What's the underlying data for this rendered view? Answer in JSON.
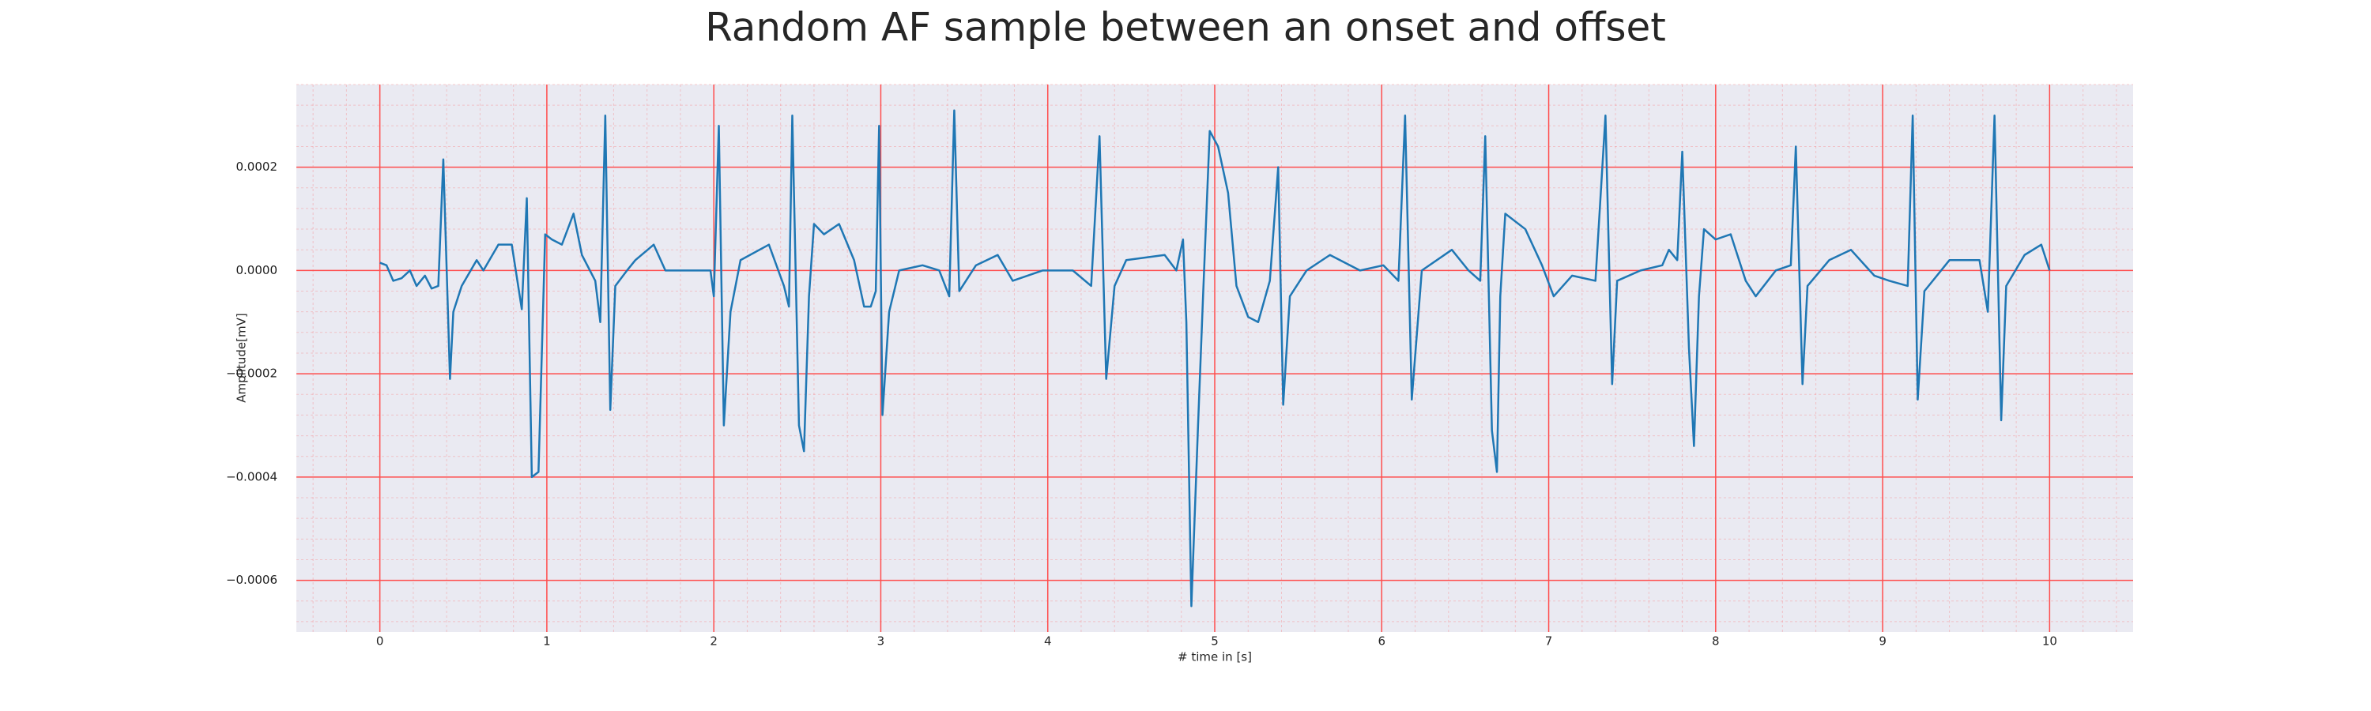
{
  "chart_data": {
    "type": "line",
    "title": "Random AF sample between an onset and offset",
    "xlabel": "# time in [s]",
    "ylabel": "Amplitude[mV]",
    "x": [
      0,
      0.04,
      0.08,
      0.13,
      0.18,
      0.22,
      0.27,
      0.31,
      0.35,
      0.38,
      0.42,
      0.44,
      0.49,
      0.58,
      0.62,
      0.71,
      0.79,
      0.85,
      0.88,
      0.91,
      0.95,
      0.99,
      1.03,
      1.09,
      1.16,
      1.21,
      1.29,
      1.32,
      1.35,
      1.38,
      1.41,
      1.48,
      1.53,
      1.64,
      1.71,
      1.89,
      1.98,
      2.0,
      2.03,
      2.06,
      2.1,
      2.16,
      2.33,
      2.42,
      2.45,
      2.47,
      2.51,
      2.54,
      2.57,
      2.6,
      2.66,
      2.75,
      2.84,
      2.9,
      2.94,
      2.97,
      2.99,
      3.01,
      3.05,
      3.11,
      3.25,
      3.35,
      3.41,
      3.44,
      3.47,
      3.57,
      3.7,
      3.79,
      3.97,
      4.15,
      4.26,
      4.31,
      4.35,
      4.4,
      4.47,
      4.7,
      4.77,
      4.81,
      4.83,
      4.86,
      4.9,
      4.93,
      4.97,
      5.02,
      5.08,
      5.13,
      5.2,
      5.26,
      5.33,
      5.38,
      5.41,
      5.45,
      5.55,
      5.69,
      5.87,
      6.01,
      6.1,
      6.14,
      6.18,
      6.24,
      6.42,
      6.52,
      6.59,
      6.62,
      6.66,
      6.69,
      6.71,
      6.74,
      6.86,
      6.96,
      7.03,
      7.14,
      7.28,
      7.34,
      7.38,
      7.41,
      7.55,
      7.68,
      7.72,
      7.77,
      7.8,
      7.84,
      7.87,
      7.9,
      7.93,
      8.0,
      8.09,
      8.18,
      8.24,
      8.36,
      8.45,
      8.48,
      8.52,
      8.55,
      8.68,
      8.81,
      8.95,
      9.04,
      9.15,
      9.18,
      9.21,
      9.25,
      9.4,
      9.58,
      9.63,
      9.67,
      9.71,
      9.74,
      9.85,
      9.95,
      10.0
    ],
    "series": [
      {
        "color": "#1f77b4",
        "values": [
          1.5e-05,
          1e-05,
          -2e-05,
          -1.5e-05,
          0,
          -3e-05,
          -1e-05,
          -3.5e-05,
          -3e-05,
          0.000215,
          -0.00021,
          -8e-05,
          -3e-05,
          2e-05,
          0,
          5e-05,
          5e-05,
          -7.5e-05,
          0.00014,
          -0.0004,
          -0.00039,
          7e-05,
          6e-05,
          5e-05,
          0.00011,
          3e-05,
          -2e-05,
          -0.0001,
          0.0003,
          -0.00027,
          -3e-05,
          0,
          2e-05,
          5e-05,
          0,
          0,
          0,
          -5e-05,
          0.00028,
          -0.0003,
          -8e-05,
          2e-05,
          5e-05,
          -3e-05,
          -7e-05,
          0.0003,
          -0.0003,
          -0.00035,
          -5e-05,
          9e-05,
          7e-05,
          9e-05,
          2e-05,
          -7e-05,
          -7e-05,
          -4e-05,
          0.00028,
          -0.00028,
          -8e-05,
          0,
          1e-05,
          0,
          -5e-05,
          0.00031,
          -4e-05,
          1e-05,
          3e-05,
          -2e-05,
          0,
          0,
          -3e-05,
          0.00026,
          -0.00021,
          -3e-05,
          2e-05,
          3e-05,
          0,
          6e-05,
          -0.0001,
          -0.00065,
          -0.0003,
          -5e-05,
          0.00027,
          0.00024,
          0.00015,
          -3e-05,
          -9e-05,
          -0.0001,
          -2e-05,
          0.0002,
          -0.00026,
          -5e-05,
          0,
          3e-05,
          0,
          1e-05,
          -2e-05,
          0.0003,
          -0.00025,
          0,
          4e-05,
          0,
          -2e-05,
          0.00026,
          -0.00031,
          -0.00039,
          -5e-05,
          0.00011,
          8e-05,
          1e-05,
          -5e-05,
          -1e-05,
          -2e-05,
          0.0003,
          -0.00022,
          -2e-05,
          0,
          1e-05,
          4e-05,
          2e-05,
          0.00023,
          -0.00015,
          -0.00034,
          -5e-05,
          8e-05,
          6e-05,
          7e-05,
          -2e-05,
          -5e-05,
          0,
          1e-05,
          0.00024,
          -0.00022,
          -3e-05,
          2e-05,
          4e-05,
          -1e-05,
          -2e-05,
          -3e-05,
          0.0003,
          -0.00025,
          -4e-05,
          2e-05,
          2e-05,
          -8e-05,
          0.0003,
          -0.00029,
          -3e-05,
          3e-05,
          5e-05,
          0
        ]
      }
    ],
    "xlim": [
      -0.5,
      10.5
    ],
    "xticks": [
      0,
      1,
      2,
      3,
      4,
      5,
      6,
      7,
      8,
      9,
      10
    ],
    "ylim": [
      -0.0007,
      0.00036
    ],
    "yticks": [
      {
        "value": -0.0006,
        "label": "−0.0006"
      },
      {
        "value": -0.0004,
        "label": "−0.0004"
      },
      {
        "value": -0.0002,
        "label": "−0.0002"
      },
      {
        "value": 0,
        "label": "0.0000"
      },
      0.0002
    ],
    "grid": true,
    "grid_color": "#ff4d4d",
    "minor_grid": true,
    "background": "#eaeaf2"
  }
}
